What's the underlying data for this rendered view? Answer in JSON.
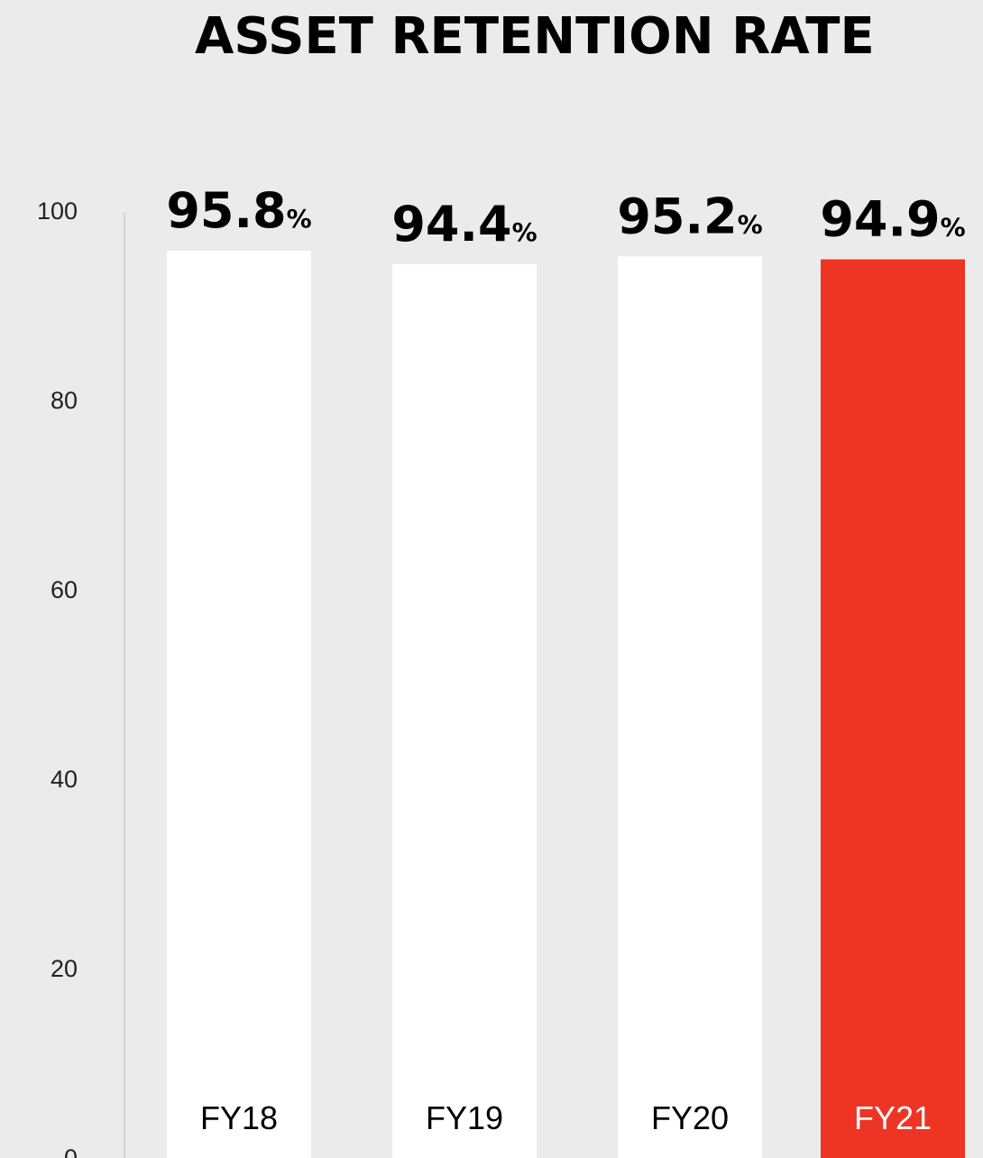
{
  "chart_data": {
    "type": "bar",
    "title": "ASSET RETENTION RATE",
    "categories": [
      "FY18",
      "FY19",
      "FY20",
      "FY21"
    ],
    "values": [
      95.8,
      94.4,
      95.2,
      94.9
    ],
    "value_unit": "%",
    "yticks": [
      0,
      20,
      40,
      60,
      80,
      100
    ],
    "ylim": [
      0,
      100
    ],
    "xlabel": "",
    "ylabel": "",
    "grid": false,
    "colors": {
      "background": "#ebebeb",
      "bar_default": "#ffffff",
      "bar_highlight": "#ee3524",
      "label_default": "#000000",
      "label_highlight": "#ffffff",
      "axis_line": "#d4d4d4"
    },
    "highlight_index": 3
  }
}
